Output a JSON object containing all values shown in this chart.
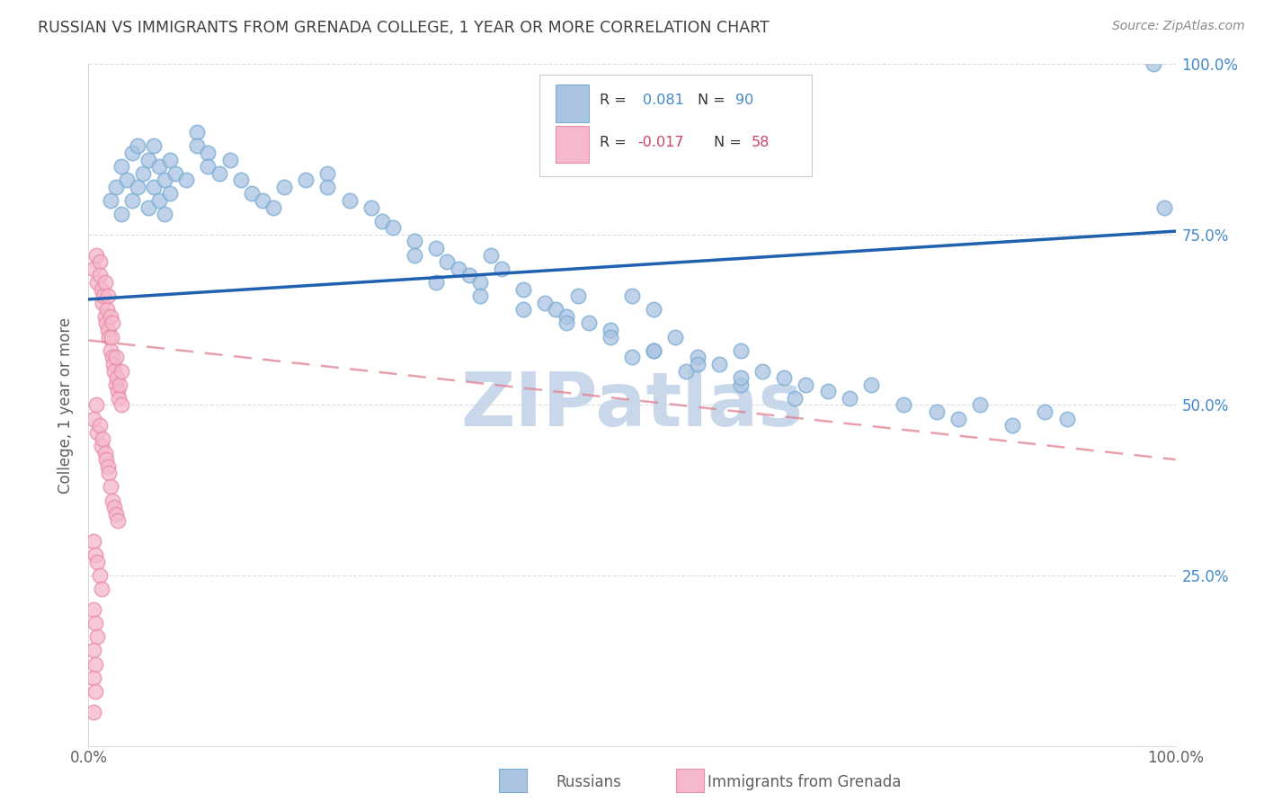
{
  "title": "RUSSIAN VS IMMIGRANTS FROM GRENADA COLLEGE, 1 YEAR OR MORE CORRELATION CHART",
  "source": "Source: ZipAtlas.com",
  "ylabel": "College, 1 year or more",
  "xlim": [
    0,
    1
  ],
  "ylim": [
    0,
    1
  ],
  "blue_color": "#aac4e2",
  "blue_edge_color": "#7aadd4",
  "blue_line_color": "#2060b0",
  "pink_color": "#f5b8cc",
  "pink_edge_color": "#e890a8",
  "pink_line_color": "#e08090",
  "watermark_text": "ZIPatlas",
  "watermark_color": "#c8d8ea",
  "background_color": "#ffffff",
  "grid_color": "#d8d8d8",
  "title_color": "#404040",
  "source_color": "#888888",
  "axis_label_color": "#606060",
  "right_axis_color": "#4488cc",
  "legend_blue_r": "R = ",
  "legend_blue_r_val": "0.081",
  "legend_blue_n": "N = ",
  "legend_blue_n_val": "90",
  "legend_pink_r": "R = ",
  "legend_pink_r_val": "-0.017",
  "legend_pink_n": "N = ",
  "legend_pink_n_val": "58",
  "blue_line_x0": 0.0,
  "blue_line_y0": 0.655,
  "blue_line_x1": 1.0,
  "blue_line_y1": 0.755,
  "pink_line_x0": 0.0,
  "pink_line_y0": 0.595,
  "pink_line_x1": 1.0,
  "pink_line_y1": 0.42,
  "russians_x": [
    0.02,
    0.025,
    0.03,
    0.03,
    0.035,
    0.04,
    0.04,
    0.045,
    0.045,
    0.05,
    0.055,
    0.055,
    0.06,
    0.06,
    0.065,
    0.065,
    0.07,
    0.07,
    0.075,
    0.075,
    0.08,
    0.09,
    0.1,
    0.1,
    0.11,
    0.11,
    0.12,
    0.13,
    0.14,
    0.15,
    0.16,
    0.17,
    0.18,
    0.2,
    0.22,
    0.22,
    0.24,
    0.26,
    0.27,
    0.28,
    0.3,
    0.3,
    0.32,
    0.33,
    0.34,
    0.35,
    0.36,
    0.37,
    0.38,
    0.4,
    0.42,
    0.43,
    0.44,
    0.45,
    0.46,
    0.48,
    0.5,
    0.52,
    0.52,
    0.54,
    0.56,
    0.58,
    0.6,
    0.62,
    0.64,
    0.66,
    0.68,
    0.7,
    0.72,
    0.75,
    0.78,
    0.8,
    0.82,
    0.85,
    0.88,
    0.9,
    0.5,
    0.55,
    0.6,
    0.65,
    0.32,
    0.36,
    0.4,
    0.44,
    0.48,
    0.52,
    0.56,
    0.6,
    0.98,
    0.99
  ],
  "russians_y": [
    0.8,
    0.82,
    0.78,
    0.85,
    0.83,
    0.8,
    0.87,
    0.82,
    0.88,
    0.84,
    0.79,
    0.86,
    0.82,
    0.88,
    0.85,
    0.8,
    0.83,
    0.78,
    0.81,
    0.86,
    0.84,
    0.83,
    0.9,
    0.88,
    0.87,
    0.85,
    0.84,
    0.86,
    0.83,
    0.81,
    0.8,
    0.79,
    0.82,
    0.83,
    0.84,
    0.82,
    0.8,
    0.79,
    0.77,
    0.76,
    0.74,
    0.72,
    0.73,
    0.71,
    0.7,
    0.69,
    0.68,
    0.72,
    0.7,
    0.67,
    0.65,
    0.64,
    0.63,
    0.66,
    0.62,
    0.61,
    0.66,
    0.64,
    0.58,
    0.6,
    0.57,
    0.56,
    0.58,
    0.55,
    0.54,
    0.53,
    0.52,
    0.51,
    0.53,
    0.5,
    0.49,
    0.48,
    0.5,
    0.47,
    0.49,
    0.48,
    0.57,
    0.55,
    0.53,
    0.51,
    0.68,
    0.66,
    0.64,
    0.62,
    0.6,
    0.58,
    0.56,
    0.54,
    1.0,
    0.79
  ],
  "grenada_x": [
    0.005,
    0.007,
    0.008,
    0.01,
    0.01,
    0.012,
    0.013,
    0.014,
    0.015,
    0.015,
    0.016,
    0.017,
    0.018,
    0.018,
    0.019,
    0.02,
    0.02,
    0.021,
    0.022,
    0.022,
    0.023,
    0.024,
    0.025,
    0.025,
    0.026,
    0.027,
    0.028,
    0.029,
    0.03,
    0.03,
    0.005,
    0.007,
    0.008,
    0.01,
    0.012,
    0.013,
    0.015,
    0.016,
    0.018,
    0.019,
    0.02,
    0.022,
    0.024,
    0.025,
    0.027,
    0.005,
    0.006,
    0.008,
    0.01,
    0.012,
    0.005,
    0.006,
    0.008,
    0.005,
    0.006,
    0.005,
    0.006,
    0.005
  ],
  "grenada_y": [
    0.7,
    0.72,
    0.68,
    0.71,
    0.69,
    0.67,
    0.65,
    0.66,
    0.63,
    0.68,
    0.62,
    0.64,
    0.61,
    0.66,
    0.6,
    0.63,
    0.58,
    0.6,
    0.57,
    0.62,
    0.56,
    0.55,
    0.57,
    0.53,
    0.54,
    0.52,
    0.51,
    0.53,
    0.5,
    0.55,
    0.48,
    0.5,
    0.46,
    0.47,
    0.44,
    0.45,
    0.43,
    0.42,
    0.41,
    0.4,
    0.38,
    0.36,
    0.35,
    0.34,
    0.33,
    0.3,
    0.28,
    0.27,
    0.25,
    0.23,
    0.2,
    0.18,
    0.16,
    0.14,
    0.12,
    0.1,
    0.08,
    0.05
  ]
}
